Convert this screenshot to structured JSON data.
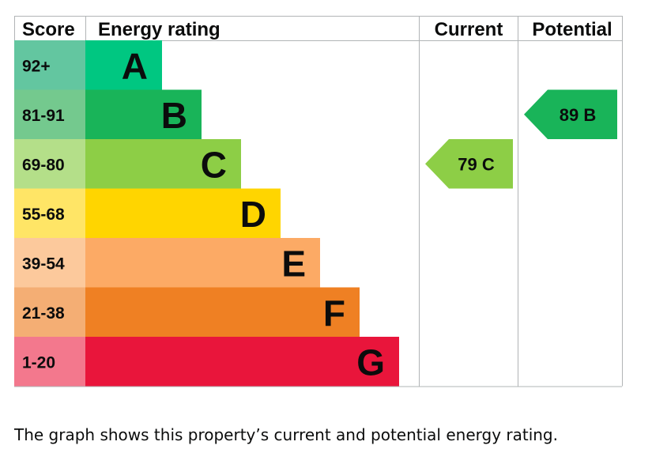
{
  "chart_data": {
    "type": "bar",
    "headers": {
      "score": "Score",
      "energy_rating": "Energy rating",
      "current": "Current",
      "potential": "Potential"
    },
    "bands": [
      {
        "letter": "A",
        "range": "92+",
        "bar_color": "#00c781",
        "score_color": "#63c6a0"
      },
      {
        "letter": "B",
        "range": "81-91",
        "bar_color": "#19b459",
        "score_color": "#74c98e"
      },
      {
        "letter": "C",
        "range": "69-80",
        "bar_color": "#8dce46",
        "score_color": "#b4df89"
      },
      {
        "letter": "D",
        "range": "55-68",
        "bar_color": "#ffd500",
        "score_color": "#ffe566"
      },
      {
        "letter": "E",
        "range": "39-54",
        "bar_color": "#fcaa65",
        "score_color": "#fcc99c"
      },
      {
        "letter": "F",
        "range": "21-38",
        "bar_color": "#ef8023",
        "score_color": "#f4ae74"
      },
      {
        "letter": "G",
        "range": "1-20",
        "bar_color": "#e9153b",
        "score_color": "#f3788d"
      }
    ],
    "current": {
      "value": 79,
      "letter": "C",
      "label": "79 C",
      "color": "#8dce46"
    },
    "potential": {
      "value": 89,
      "letter": "B",
      "label": "89 B",
      "color": "#19b459"
    }
  },
  "caption": "The graph shows this property’s current and potential energy rating."
}
